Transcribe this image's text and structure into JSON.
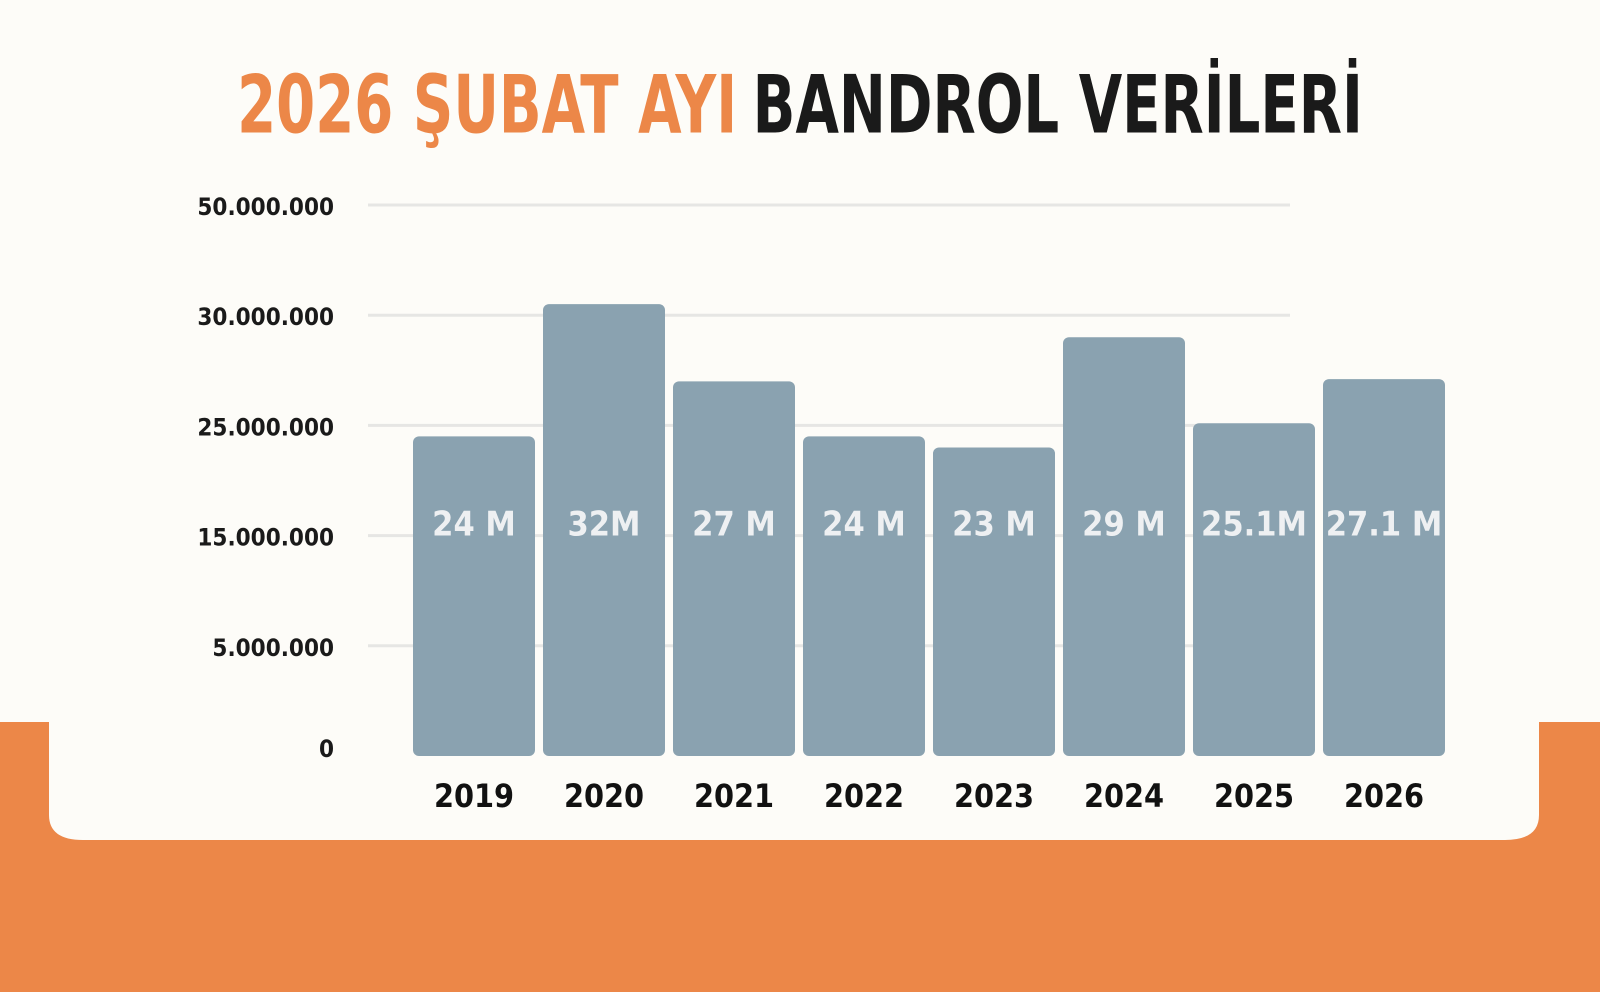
{
  "chart_data": {
    "type": "bar",
    "title": [
      "2026 ŞUBAT AYI",
      "BANDROL VERİLERİ"
    ],
    "categories": [
      "2019",
      "2020",
      "2021",
      "2022",
      "2023",
      "2024",
      "2025",
      "2026"
    ],
    "values": [
      24000000,
      32000000,
      27000000,
      24000000,
      23000000,
      29000000,
      25100000,
      27100000
    ],
    "value_labels": [
      "24 M",
      "32M",
      "27 M",
      "24 M",
      "23 M",
      "29 M",
      "25.1M",
      "27.1 M"
    ],
    "color": "#8aa2b0",
    "yticks": [
      {
        "value": 50000000,
        "label": "50.000.000"
      },
      {
        "value": 30000000,
        "label": "30.000.000"
      },
      {
        "value": 25000000,
        "label": "25.000.000"
      },
      {
        "value": 15000000,
        "label": "15.000.000"
      },
      {
        "value": 5000000,
        "label": "5.000.000"
      },
      0
    ],
    "ylim": [
      0,
      50000000
    ],
    "grid": true
  }
}
